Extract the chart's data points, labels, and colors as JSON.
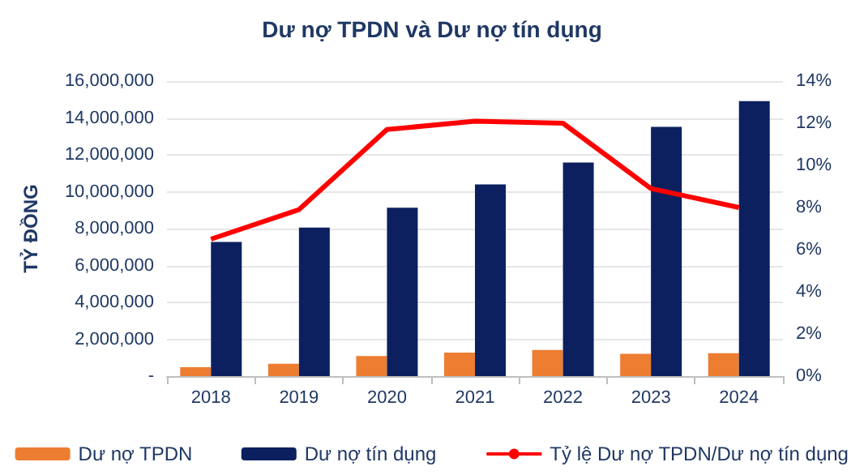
{
  "chart_data": {
    "type": "bar",
    "title": "Dư nợ TPDN và Dư nợ tín dụng",
    "ylabel": "TỶ ĐỒNG",
    "categories": [
      "2018",
      "2019",
      "2020",
      "2021",
      "2022",
      "2023",
      "2024"
    ],
    "series": [
      {
        "name": "Dư nợ TPDN",
        "color": "#ed7d31",
        "values": [
          480000,
          670000,
          1090000,
          1270000,
          1420000,
          1210000,
          1240000
        ]
      },
      {
        "name": "Dư nợ tín dụng",
        "color": "#0c2060",
        "values": [
          7270000,
          8060000,
          9130000,
          10400000,
          11580000,
          13520000,
          14910000
        ]
      },
      {
        "name": "Tỷ lệ Dư nợ TPDN/Dư nợ tín dụng",
        "type": "line",
        "axis": "y2",
        "color": "#ff0000",
        "marker": "none",
        "values": [
          6.5,
          7.9,
          11.7,
          12.1,
          12.0,
          8.9,
          8.0
        ]
      }
    ],
    "ylim": [
      0,
      16000000
    ],
    "yticks": [
      {
        "value": 0,
        "label": "-"
      },
      {
        "value": 2000000,
        "label": "2,000,000"
      },
      {
        "value": 4000000,
        "label": "4,000,000"
      },
      {
        "value": 6000000,
        "label": "6,000,000"
      },
      {
        "value": 8000000,
        "label": "8,000,000"
      },
      {
        "value": 10000000,
        "label": "10,000,000"
      },
      {
        "value": 12000000,
        "label": "12,000,000"
      },
      {
        "value": 14000000,
        "label": "14,000,000"
      },
      {
        "value": 16000000,
        "label": "16,000,000"
      }
    ],
    "y2lim": [
      0,
      14
    ],
    "y2ticks": [
      {
        "value": 0,
        "label": "0%"
      },
      {
        "value": 2,
        "label": "2%"
      },
      {
        "value": 4,
        "label": "4%"
      },
      {
        "value": 6,
        "label": "6%"
      },
      {
        "value": 8,
        "label": "8%"
      },
      {
        "value": 10,
        "label": "10%"
      },
      {
        "value": 12,
        "label": "12%"
      },
      {
        "value": 14,
        "label": "14%"
      }
    ],
    "grid": "y",
    "legend": "bottom"
  }
}
